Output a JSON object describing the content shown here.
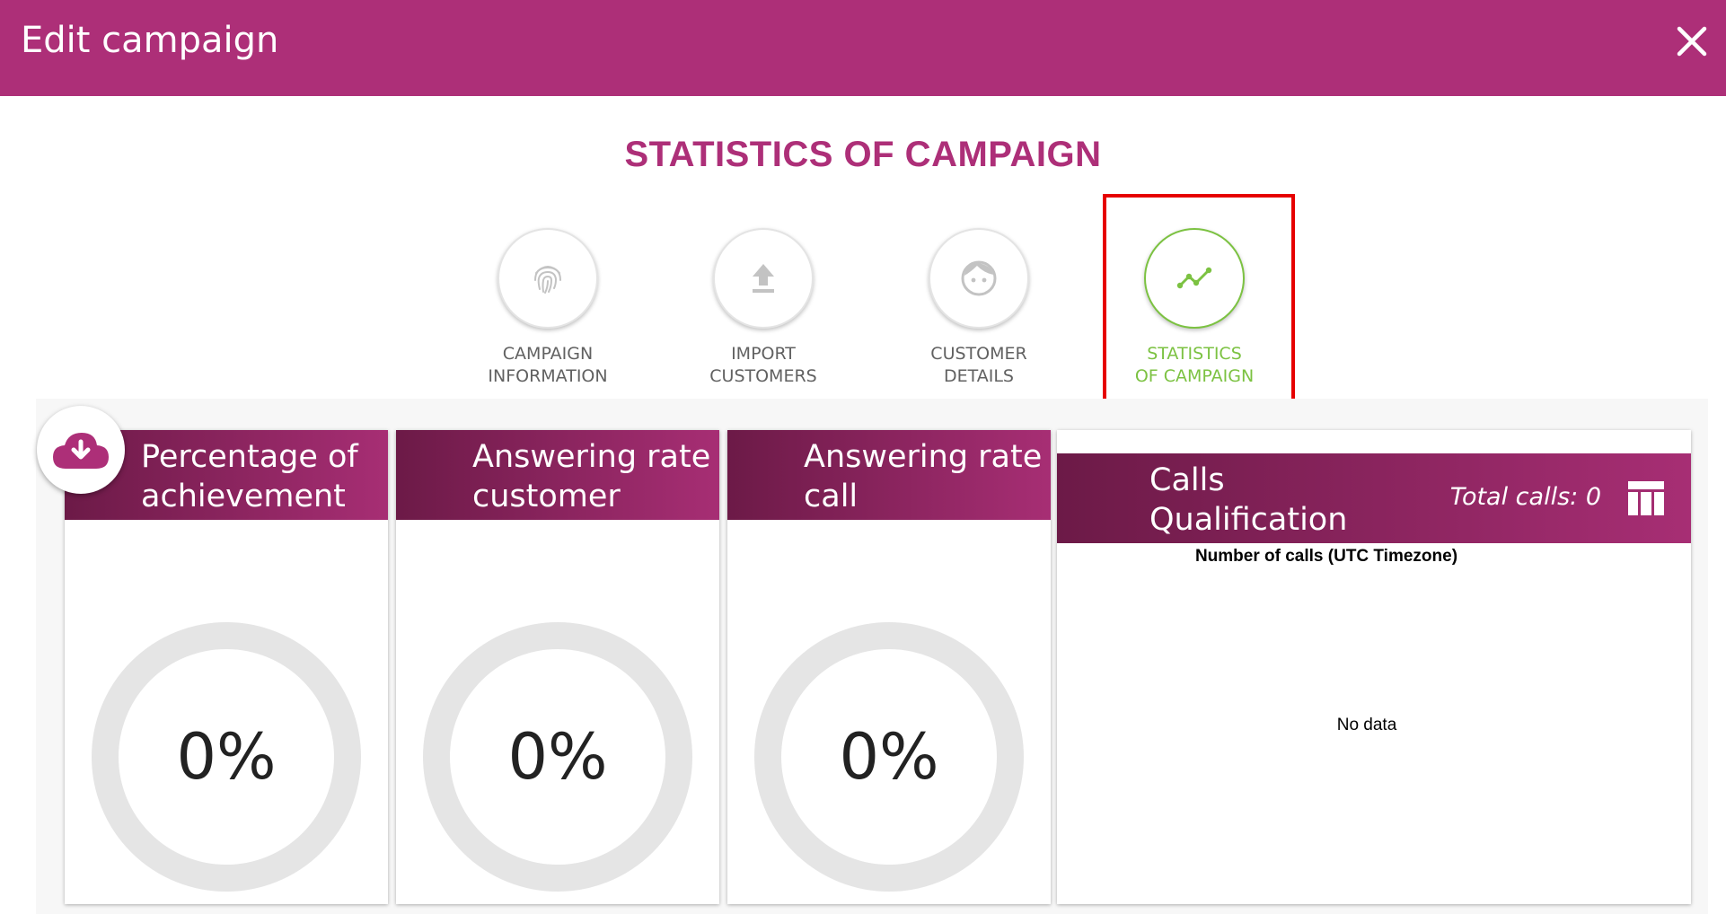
{
  "header": {
    "title": "Edit campaign",
    "close_icon": "close-icon"
  },
  "page_heading": "STATISTICS OF CAMPAIGN",
  "steps": [
    {
      "line1": "CAMPAIGN",
      "line2": "INFORMATION",
      "icon": "fingerprint-icon",
      "active": false
    },
    {
      "line1": "IMPORT",
      "line2": "CUSTOMERS",
      "icon": "upload-icon",
      "active": false
    },
    {
      "line1": "CUSTOMER",
      "line2": "DETAILS",
      "icon": "face-icon",
      "active": false
    },
    {
      "line1": "STATISTICS",
      "line2": "OF CAMPAIGN",
      "icon": "trending-icon",
      "active": true
    }
  ],
  "cards": [
    {
      "title_line1": "Percentage of",
      "title_line2": "achievement",
      "value": "0%"
    },
    {
      "title_line1": "Answering rate",
      "title_line2": "customer",
      "value": "0%"
    },
    {
      "title_line1": "Answering rate",
      "title_line2": "call",
      "value": "0%"
    }
  ],
  "calls": {
    "title_line1": "Calls",
    "title_line2": "Qualification",
    "total": "Total calls: 0",
    "chart_title": "Number of calls (UTC Timezone)",
    "no_data": "No data"
  },
  "colors": {
    "brand": "#ad2f78",
    "active": "#7cc242",
    "highlight": "#e60000"
  }
}
